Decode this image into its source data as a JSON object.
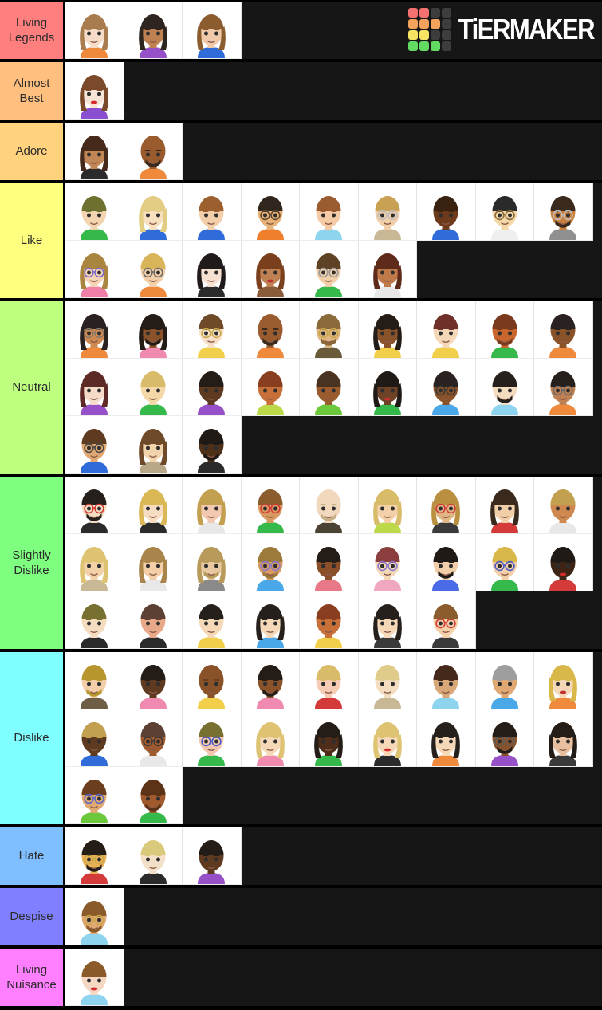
{
  "logo": {
    "wordmark": "TiERMAKER",
    "grid": [
      "#F4716F",
      "#F4716F",
      "#3D3D3D",
      "#3D3D3D",
      "#F5A35C",
      "#F5A35C",
      "#F5A35C",
      "#3D3D3D",
      "#F7E463",
      "#F7E463",
      "#3D3D3D",
      "#3D3D3D",
      "#63DB63",
      "#63DB63",
      "#63DB63",
      "#3D3D3D"
    ]
  },
  "mii_schema": [
    "skin",
    "hair",
    "shirt",
    "hairstyle(s=short,l=long,b=bald)",
    "glasses",
    "beard",
    "lips"
  ],
  "tiers": [
    {
      "label": "Living Legends",
      "color": "#FF7F7E",
      "miis": [
        [
          "#F6DCC8",
          "#A97C50",
          "#EF8A3C",
          "l",
          null,
          0,
          null
        ],
        [
          "#C08152",
          "#2E2420",
          "#9650C8",
          "l",
          null,
          0,
          null
        ],
        [
          "#EFC9A8",
          "#8A5C2E",
          "#2F6BD9",
          "l",
          null,
          0,
          null
        ]
      ]
    },
    {
      "label": "Almost Best",
      "color": "#FFBF7F",
      "miis": [
        [
          "#F6E4D6",
          "#7A4A2B",
          "#8A4FD0",
          "l",
          null,
          0,
          "#D42B2B"
        ]
      ]
    },
    {
      "label": "Adore",
      "color": "#FFD37E",
      "miis": [
        [
          "#C18655",
          "#45291A",
          "#2B2B2B",
          "l",
          null,
          0,
          null
        ],
        [
          "#9A5B2E",
          "#3A2A1E",
          "#EF8A3C",
          "b",
          null,
          1,
          null
        ]
      ]
    },
    {
      "label": "Like",
      "color": "#FFFF7F",
      "miis": [
        [
          "#F2D4B0",
          "#6E7030",
          "#34B94A",
          "s",
          null,
          0,
          null
        ],
        [
          "#F6E0C0",
          "#E3CC84",
          "#2F6BD9",
          "l",
          null,
          0,
          null
        ],
        [
          "#F2CFA8",
          "#9C602F",
          "#2F6BD9",
          "s",
          null,
          0,
          null
        ],
        [
          "#E8B175",
          "#30261E",
          "#EF7F2A",
          "s",
          "#5A4632",
          0,
          null
        ],
        [
          "#F4CBA4",
          "#9A5B30",
          "#8FD4EF",
          "s",
          null,
          0,
          null
        ],
        [
          "#F2CFA8",
          "#C8A252",
          "#C8B896",
          "s",
          "#BFBFBF",
          0,
          null
        ],
        [
          "#6E3A1C",
          "#3A2210",
          "#2F6BD9",
          "s",
          null,
          0,
          null
        ],
        [
          "#F4D8A8",
          "#2A2A2A",
          "#EFEFEF",
          "s",
          "#8A6A3A",
          0,
          null
        ],
        [
          "#C9803F",
          "#3A2A1E",
          "#909090",
          "s",
          "#BFBFBF",
          1,
          null
        ],
        [
          "#F4D4B4",
          "#A9853F",
          "#F07FA8",
          "l",
          "#7A6ACD",
          0,
          null
        ],
        [
          "#F2CFA8",
          "#D9B55A",
          "#EF8A3C",
          "s",
          "#6A6A6A",
          0,
          null
        ],
        [
          "#F6E0D0",
          "#201A1A",
          "#2B2B2B",
          "l",
          null,
          0,
          null
        ],
        [
          "#C08152",
          "#7A3F1C",
          "#8A5C3A",
          "l",
          null,
          0,
          "#C03030"
        ],
        [
          "#F2CFA8",
          "#5E4226",
          "#34B94A",
          "s",
          "#9A9A9A",
          0,
          null
        ],
        [
          "#C07A4A",
          "#5E2A1A",
          "#E8E8E8",
          "l",
          null,
          0,
          null
        ]
      ]
    },
    {
      "label": "Neutral",
      "color": "#BFFF7F",
      "miis": [
        [
          "#CE8850",
          "#2A2220",
          "#EF8A3C",
          "l",
          "#8A7A6A",
          0,
          null
        ],
        [
          "#8A5228",
          "#241C16",
          "#F08AB0",
          "l",
          null,
          1,
          null
        ],
        [
          "#F6E0C8",
          "#6E4A28",
          "#F2CF4A",
          "s",
          "#C8A84A",
          0,
          null
        ],
        [
          "#9A5B2E",
          "#3A2A1E",
          "#EF8A3C",
          "b",
          null,
          1,
          null
        ],
        [
          "#E0B684",
          "#8A6A3A",
          "#6A5A3A",
          "s",
          "#C8A84A",
          1,
          null
        ],
        [
          "#8A5228",
          "#241C16",
          "#F2CF4A",
          "l",
          null,
          0,
          null
        ],
        [
          "#F4D8B8",
          "#6E3028",
          "#F2CF4A",
          "s",
          null,
          0,
          null
        ],
        [
          "#C8662E",
          "#7A3A1E",
          "#34B94A",
          "s",
          null,
          1,
          null
        ],
        [
          "#8A5228",
          "#2A2220",
          "#EF8A3C",
          "s",
          null,
          0,
          null
        ],
        [
          "#F6DCC8",
          "#5E2A26",
          "#9650C8",
          "l",
          null,
          0,
          null
        ],
        [
          "#F4D8A8",
          "#D9BC6A",
          "#34B94A",
          "s",
          null,
          0,
          null
        ],
        [
          "#5E3A20",
          "#241C16",
          "#9650C8",
          "s",
          null,
          0,
          null
        ],
        [
          "#C8703A",
          "#8A3E20",
          "#BCD94A",
          "s",
          null,
          0,
          null
        ],
        [
          "#9A5B2E",
          "#4A3220",
          "#6AC83A",
          "s",
          null,
          0,
          null
        ],
        [
          "#6E4226",
          "#201A16",
          "#34B94A",
          "l",
          null,
          0,
          "#C03030"
        ],
        [
          "#8A5228",
          "#2A2220",
          "#4AA8E8",
          "s",
          "#3A3A3A",
          0,
          null
        ],
        [
          "#F4DCC0",
          "#26201C",
          "#8FD4EF",
          "s",
          null,
          1,
          null
        ],
        [
          "#C08152",
          "#26201C",
          "#EF8A3C",
          "s",
          "#6A6A6A",
          0,
          null
        ],
        [
          "#E0A872",
          "#5E3A20",
          "#2F6BD9",
          "s",
          "#4A4A4A",
          0,
          null
        ],
        [
          "#F2D4AC",
          "#6E4A2A",
          "#B8A888",
          "l",
          null,
          0,
          null
        ],
        [
          "#4E3018",
          "#201A16",
          "#2B2B2B",
          "s",
          null,
          1,
          null
        ]
      ]
    },
    {
      "label": "Slightly Dislike",
      "color": "#7FFF7F",
      "miis": [
        [
          "#F4DCC0",
          "#26201C",
          "#2B2B2B",
          "s",
          "#D43A3A",
          1,
          null
        ],
        [
          "#F6DCC0",
          "#D9B855",
          "#2B2B2B",
          "l",
          null,
          0,
          null
        ],
        [
          "#F2C8B0",
          "#C2A050",
          "#E8E8E8",
          "l",
          null,
          0,
          null
        ],
        [
          "#D89A60",
          "#8A5C2E",
          "#34B94A",
          "s",
          "#D43A3A",
          0,
          null
        ],
        [
          "#F2D8BC",
          "#C8B088",
          "#4A4232",
          "b",
          null,
          1,
          null
        ],
        [
          "#F4D0A8",
          "#D9BC6A",
          "#BCD94A",
          "l",
          null,
          0,
          null
        ],
        [
          "#E0B684",
          "#B89040",
          "#3A3A3A",
          "l",
          "#D43A3A",
          0,
          null
        ],
        [
          "#F2CFA8",
          "#3A2A1E",
          "#D43A3A",
          "l",
          null,
          0,
          null
        ],
        [
          "#CE8850",
          "#C2A050",
          "#E8E8E8",
          "s",
          null,
          0,
          null
        ],
        [
          "#F2D0A8",
          "#DDC372",
          "#C8B896",
          "l",
          null,
          0,
          null
        ],
        [
          "#F2CFA8",
          "#A9854B",
          "#E8E8E8",
          "l",
          null,
          0,
          null
        ],
        [
          "#E8C8A0",
          "#B89B5A",
          "#8A8A8A",
          "l",
          null,
          1,
          null
        ],
        [
          "#D89A60",
          "#9C7A3C",
          "#4AA8E8",
          "s",
          "#8A7ACD",
          1,
          null
        ],
        [
          "#8A4E28",
          "#241C16",
          "#E87888",
          "s",
          null,
          0,
          null
        ],
        [
          "#F4D8B8",
          "#8A3E3E",
          "#F0A8C0",
          "s",
          "#8A7ACD",
          0,
          null
        ],
        [
          "#F2CFA8",
          "#201A16",
          "#4A6AE8",
          "s",
          null,
          1,
          null
        ],
        [
          "#F2CFA8",
          "#D9B84A",
          "#34B94A",
          "s",
          "#4A5AC8",
          0,
          null
        ],
        [
          "#3E2414",
          "#201A16",
          "#D43A3A",
          "s",
          null,
          0,
          "#D42B2B"
        ],
        [
          "#F4DCC0",
          "#777030",
          "#2B2B2B",
          "s",
          null,
          0,
          null
        ],
        [
          "#E8A88A",
          "#5C4033",
          "#2B2B2B",
          "s",
          null,
          0,
          null
        ],
        [
          "#F4D8B8",
          "#26201C",
          "#F2CF4A",
          "s",
          null,
          0,
          null
        ],
        [
          "#F4D8B8",
          "#26201C",
          "#4AA8E8",
          "l",
          null,
          0,
          null
        ],
        [
          "#C8703A",
          "#8A3E20",
          "#F2CF4A",
          "s",
          null,
          0,
          null
        ],
        [
          "#F4D8B8",
          "#26201C",
          "#3A3A3A",
          "l",
          null,
          0,
          null
        ],
        [
          "#F4D0A8",
          "#8A5C2E",
          "#3A3A3A",
          "s",
          "#D43A3A",
          0,
          null
        ]
      ]
    },
    {
      "label": "Dislike",
      "color": "#7FFFFF",
      "miis": [
        [
          "#F2CFA8",
          "#B8962E",
          "#6E5E46",
          "s",
          null,
          1,
          null
        ],
        [
          "#5E3A20",
          "#241C16",
          "#F08AB0",
          "s",
          null,
          0,
          null
        ],
        [
          "#8A5228",
          "#6E3E1E",
          "#F2CF4A",
          "b",
          null,
          0,
          null
        ],
        [
          "#8A5228",
          "#241C16",
          "#F08AB0",
          "s",
          null,
          1,
          null
        ],
        [
          "#F6CDB4",
          "#D9BC6A",
          "#D43A3A",
          "s",
          null,
          0,
          null
        ],
        [
          "#F4DCC0",
          "#E0CC8A",
          "#C8B896",
          "s",
          null,
          0,
          null
        ],
        [
          "#D8A878",
          "#45291A",
          "#8FD4EF",
          "s",
          null,
          0,
          null
        ],
        [
          "#E0A872",
          "#9E9E9E",
          "#4AA8E8",
          "s",
          null,
          0,
          null
        ],
        [
          "#F4D8B8",
          "#D9B84A",
          "#EF8A3C",
          "l",
          null,
          0,
          "#C03030"
        ],
        [
          "#5E3A20",
          "#C2A050",
          "#2F6BD9",
          "s",
          null,
          0,
          null
        ],
        [
          "#A05A2E",
          "#5C4033",
          "#E8E8E8",
          "s",
          "#3A3A3A",
          0,
          null
        ],
        [
          "#F2C8B0",
          "#777030",
          "#34B94A",
          "s",
          "#4A5AC8",
          0,
          null
        ],
        [
          "#F4D8B8",
          "#DDC372",
          "#F08AB0",
          "l",
          null,
          0,
          null
        ],
        [
          "#4E2E1A",
          "#241C16",
          "#34B94A",
          "l",
          null,
          0,
          null
        ],
        [
          "#F4D8B8",
          "#DDC372",
          "#2B2B2B",
          "l",
          null,
          0,
          "#D42B2B"
        ],
        [
          "#F4D8B8",
          "#26201C",
          "#EF8A3C",
          "l",
          null,
          0,
          null
        ],
        [
          "#8A5228",
          "#241C16",
          "#9650C8",
          "s",
          "#5A5A5A",
          1,
          null
        ],
        [
          "#E8C0A0",
          "#241C16",
          "#3A3A3A",
          "l",
          null,
          0,
          null
        ],
        [
          "#E0A872",
          "#6B3E1E",
          "#6AC83A",
          "s",
          "#5A6AC8",
          0,
          null
        ],
        [
          "#A05A2E",
          "#5C3317",
          "#34B94A",
          "s",
          null,
          1,
          null
        ]
      ]
    },
    {
      "label": "Hate",
      "color": "#7FBFFF",
      "miis": [
        [
          "#E8B057",
          "#241C16",
          "#D43A3A",
          "s",
          "#C8A84A",
          1,
          null
        ],
        [
          "#F4E0C8",
          "#D9C97A",
          "#2B2B2B",
          "s",
          null,
          0,
          null
        ],
        [
          "#5E3A20",
          "#241C16",
          "#9650C8",
          "s",
          null,
          0,
          null
        ]
      ]
    },
    {
      "label": "Despise",
      "color": "#7F7FFF",
      "miis": [
        [
          "#E0A872",
          "#8B5A2B",
          "#8FD4EF",
          "s",
          "#C8A84A",
          1,
          null
        ]
      ]
    },
    {
      "label": "Living Nuisance",
      "color": "#FF7FFF",
      "miis": [
        [
          "#F6D7C4",
          "#8B5A2B",
          "#8FD4EF",
          "s",
          null,
          0,
          "#D42B2B"
        ]
      ]
    }
  ]
}
